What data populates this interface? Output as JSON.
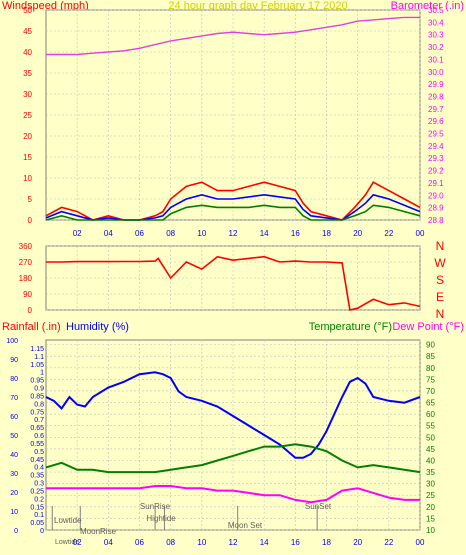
{
  "header": {
    "left_label": "Windspeed (mph)",
    "center_label": "24 hour graph day   February 17 2020",
    "right_label": "Barometer (.in)"
  },
  "colors": {
    "background": "#ffffc8",
    "red": "#ff0000",
    "blue": "#0000ff",
    "green": "#008000",
    "magenta": "#ff00ff",
    "barometer": "#e040e0",
    "dewpoint": "#ff00ff",
    "tick_text_left": "#ff0000",
    "tick_text_right_top": "#ff00ff",
    "tick_text_right_bottom": "#008000",
    "axis_text": "#0000ff",
    "grid": "#c0c0c0"
  },
  "chart_data": [
    {
      "type": "line",
      "name": "wind-barometer",
      "hours_axis": [
        "02",
        "04",
        "06",
        "08",
        "10",
        "12",
        "14",
        "16",
        "18",
        "20",
        "22",
        "00"
      ],
      "left_axis": {
        "label": "Windspeed (mph)",
        "ticks": [
          0,
          5,
          10,
          15,
          20,
          25,
          30,
          35,
          40,
          45,
          50
        ],
        "range": [
          0,
          50
        ]
      },
      "right_axis": {
        "label": "Barometer (.in)",
        "ticks": [
          "28.8",
          "28.9",
          "29.0",
          "29.1",
          "29.2",
          "29.3",
          "29.4",
          "29.5",
          "29.6",
          "29.7",
          "29.8",
          "29.9",
          "30.0",
          "30.1",
          "30.2",
          "30.3",
          "30.4",
          "30.5"
        ],
        "range": [
          28.8,
          30.5
        ]
      },
      "barometer": {
        "x_hours": [
          0,
          1,
          2,
          3,
          4,
          5,
          6,
          7,
          8,
          9,
          10,
          11,
          12,
          13,
          14,
          15,
          16,
          17,
          18,
          19,
          20,
          21,
          22,
          23,
          24
        ],
        "y": [
          30.14,
          30.14,
          30.14,
          30.15,
          30.16,
          30.17,
          30.19,
          30.22,
          30.25,
          30.27,
          30.29,
          30.31,
          30.32,
          30.31,
          30.3,
          30.31,
          30.32,
          30.34,
          30.36,
          30.38,
          30.41,
          30.42,
          30.43,
          30.44,
          30.44
        ]
      },
      "wind_gust_red": {
        "x_hours": [
          0,
          1,
          2,
          3,
          4,
          5,
          6,
          7,
          7.5,
          8,
          9,
          10,
          11,
          12,
          13,
          14,
          15,
          16,
          16.5,
          17,
          18,
          19,
          19.8,
          20.5,
          21,
          22,
          23,
          24
        ],
        "y": [
          1,
          3,
          2,
          0,
          1,
          0,
          0,
          1,
          2,
          5,
          8,
          9,
          7,
          7,
          8,
          9,
          8,
          7,
          4,
          2,
          1,
          0,
          3,
          6,
          9,
          7,
          5,
          3
        ]
      },
      "wind_avg_blue": {
        "x_hours": [
          0,
          1,
          2,
          3,
          4,
          5,
          6,
          7,
          7.5,
          8,
          9,
          10,
          11,
          12,
          13,
          14,
          15,
          16,
          16.5,
          17,
          18,
          19,
          19.8,
          20.5,
          21,
          22,
          23,
          24
        ],
        "y": [
          0.5,
          2,
          1,
          0,
          0.5,
          0,
          0,
          0.5,
          1,
          3,
          5,
          6,
          5,
          5,
          5.5,
          6,
          5.5,
          5,
          2.5,
          1,
          0.5,
          0,
          2,
          4,
          6,
          5,
          3.5,
          2
        ]
      },
      "wind_min_green": {
        "x_hours": [
          0,
          1,
          2,
          3,
          4,
          5,
          6,
          7,
          7.5,
          8,
          9,
          10,
          11,
          12,
          13,
          14,
          15,
          16,
          16.5,
          17,
          18,
          19,
          19.8,
          20.5,
          21,
          22,
          23,
          24
        ],
        "y": [
          0,
          1,
          0,
          0,
          0,
          0,
          0,
          0,
          0,
          1.5,
          3,
          3.5,
          3,
          3,
          3,
          3.5,
          3,
          3,
          1,
          0,
          0,
          0,
          1,
          2,
          3.5,
          3,
          2,
          1
        ]
      }
    },
    {
      "type": "line",
      "name": "wind-direction",
      "left_axis": {
        "ticks": [
          0,
          90,
          180,
          270,
          360
        ],
        "range": [
          0,
          360
        ]
      },
      "right_axis_labels": [
        "N",
        "W",
        "S",
        "E",
        "N"
      ],
      "direction": {
        "x_hours": [
          0,
          1,
          2,
          3,
          4,
          5,
          6,
          7,
          7.2,
          8,
          9,
          10,
          11,
          12,
          13,
          14,
          15,
          16,
          17,
          18,
          19,
          19.5,
          20,
          21,
          22,
          23,
          24
        ],
        "y": [
          270,
          270,
          272,
          272,
          272,
          273,
          273,
          275,
          290,
          180,
          270,
          230,
          300,
          280,
          290,
          300,
          270,
          275,
          270,
          270,
          265,
          0,
          10,
          60,
          30,
          40,
          20
        ]
      }
    },
    {
      "type": "line",
      "name": "humidity-temperature",
      "left_axis_rain": {
        "label": "Rainfall (.in)",
        "ticks": [
          0,
          0.05,
          0.1,
          0.15,
          0.2,
          0.25,
          0.3,
          0.35,
          0.4,
          0.45,
          0.5,
          0.55,
          0.6,
          0.65,
          0.7,
          0.75,
          0.8,
          0.85,
          0.9,
          0.95,
          1,
          1.05,
          1.1,
          1.15
        ]
      },
      "left_axis_humidity": {
        "label": "Humidity (%)",
        "ticks": [
          0,
          10,
          20,
          30,
          40,
          50,
          60,
          70,
          80,
          90,
          100
        ]
      },
      "right_axis_temp": {
        "label_temperature": "Temperature (°F)",
        "label_dewpoint": "Dew Point (°F)",
        "ticks": [
          10,
          15,
          20,
          25,
          30,
          35,
          40,
          45,
          50,
          55,
          60,
          65,
          70,
          75,
          80,
          85,
          90
        ],
        "range": [
          10,
          92
        ]
      },
      "humidity": {
        "x_hours": [
          0,
          0.5,
          1,
          1.5,
          2,
          2.5,
          3,
          4,
          5,
          6,
          7,
          7.5,
          8,
          8.5,
          9,
          10,
          11,
          12,
          13,
          14,
          15,
          16,
          16.5,
          17,
          17.5,
          18,
          19,
          19.5,
          20,
          20.5,
          21,
          22,
          23,
          24
        ],
        "y": [
          70,
          68,
          64,
          70,
          66,
          65,
          70,
          75,
          78,
          82,
          83,
          82,
          80,
          73,
          70,
          68,
          65,
          60,
          55,
          50,
          45,
          38,
          38,
          40,
          45,
          52,
          70,
          78,
          80,
          77,
          70,
          68,
          67,
          70
        ]
      },
      "temperature": {
        "x_hours": [
          0,
          1,
          2,
          3,
          4,
          5,
          6,
          7,
          8,
          9,
          10,
          11,
          12,
          13,
          14,
          15,
          16,
          17,
          18,
          19,
          20,
          21,
          22,
          23,
          24
        ],
        "y": [
          37,
          39,
          36,
          36,
          35,
          35,
          35,
          35,
          36,
          37,
          38,
          40,
          42,
          44,
          46,
          46,
          47,
          46,
          44,
          40,
          37,
          38,
          37,
          36,
          35
        ]
      },
      "dewpoint": {
        "x_hours": [
          0,
          1,
          2,
          3,
          4,
          5,
          6,
          7,
          8,
          9,
          10,
          11,
          12,
          13,
          14,
          15,
          16,
          17,
          18,
          19,
          20,
          21,
          22,
          23,
          24
        ],
        "y": [
          28,
          28,
          28,
          28,
          28,
          28,
          28,
          29,
          29,
          28,
          28,
          27,
          27,
          26,
          25,
          25,
          23,
          22,
          23,
          27,
          28,
          26,
          24,
          23,
          23
        ]
      },
      "astro_labels": {
        "lowtide": "Lowtide",
        "moonrise": "MoonRise",
        "sunrise": "SunRise",
        "hightide": "Hightide",
        "moonset": "Moon Set",
        "sunset": "SunSet",
        "lowtide2": "Lowtide"
      },
      "hours_axis": [
        "02",
        "04",
        "06",
        "08",
        "10",
        "12",
        "14",
        "16",
        "18",
        "20",
        "22",
        "00"
      ]
    }
  ]
}
